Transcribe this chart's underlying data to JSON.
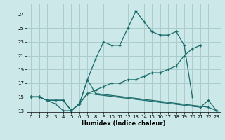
{
  "xlabel": "Humidex (Indice chaleur)",
  "background_color": "#cce8e8",
  "grid_color": "#aacccc",
  "line_color": "#1a6b6b",
  "series": [
    {
      "x": [
        0,
        1,
        2,
        3,
        4,
        5,
        6,
        7,
        8,
        22,
        23
      ],
      "y": [
        15,
        15,
        14.5,
        14,
        13,
        13,
        14,
        17.5,
        15.5,
        13.5,
        13
      ]
    },
    {
      "x": [
        0,
        1,
        2,
        3,
        4,
        5,
        6,
        7,
        21,
        22,
        23
      ],
      "y": [
        15,
        15,
        14.5,
        14.5,
        14.5,
        13,
        14,
        15.5,
        13.5,
        14.5,
        13
      ]
    },
    {
      "x": [
        0,
        1,
        2,
        3,
        4,
        5,
        6,
        7,
        8,
        9,
        10,
        11,
        12,
        13,
        14,
        15,
        16,
        17,
        18,
        19,
        20,
        21,
        22,
        23
      ],
      "y": [
        15,
        15,
        14.5,
        14.5,
        14.5,
        13,
        14,
        15.5,
        16,
        16.5,
        17,
        17,
        17.5,
        17.5,
        18,
        18.5,
        18.5,
        19,
        19.5,
        21,
        22,
        22.5,
        null,
        null
      ]
    },
    {
      "x": [
        0,
        1,
        2,
        3,
        4,
        5,
        6,
        7,
        8,
        9,
        10,
        11,
        12,
        13,
        14,
        15,
        16,
        17,
        18,
        19,
        20,
        21,
        22,
        23
      ],
      "y": [
        15,
        15,
        14.5,
        14.5,
        14.5,
        13,
        14,
        17.5,
        20.5,
        23,
        22.5,
        22.5,
        25,
        27.5,
        26,
        24.5,
        24,
        24,
        24.5,
        22.5,
        15,
        null,
        null,
        13
      ]
    }
  ],
  "xlim": [
    0,
    23
  ],
  "ylim": [
    13,
    28
  ],
  "yticks": [
    13,
    15,
    17,
    19,
    21,
    23,
    25,
    27
  ],
  "xticks": [
    0,
    1,
    2,
    3,
    4,
    5,
    6,
    7,
    8,
    9,
    10,
    11,
    12,
    13,
    14,
    15,
    16,
    17,
    18,
    19,
    20,
    21,
    22,
    23
  ]
}
